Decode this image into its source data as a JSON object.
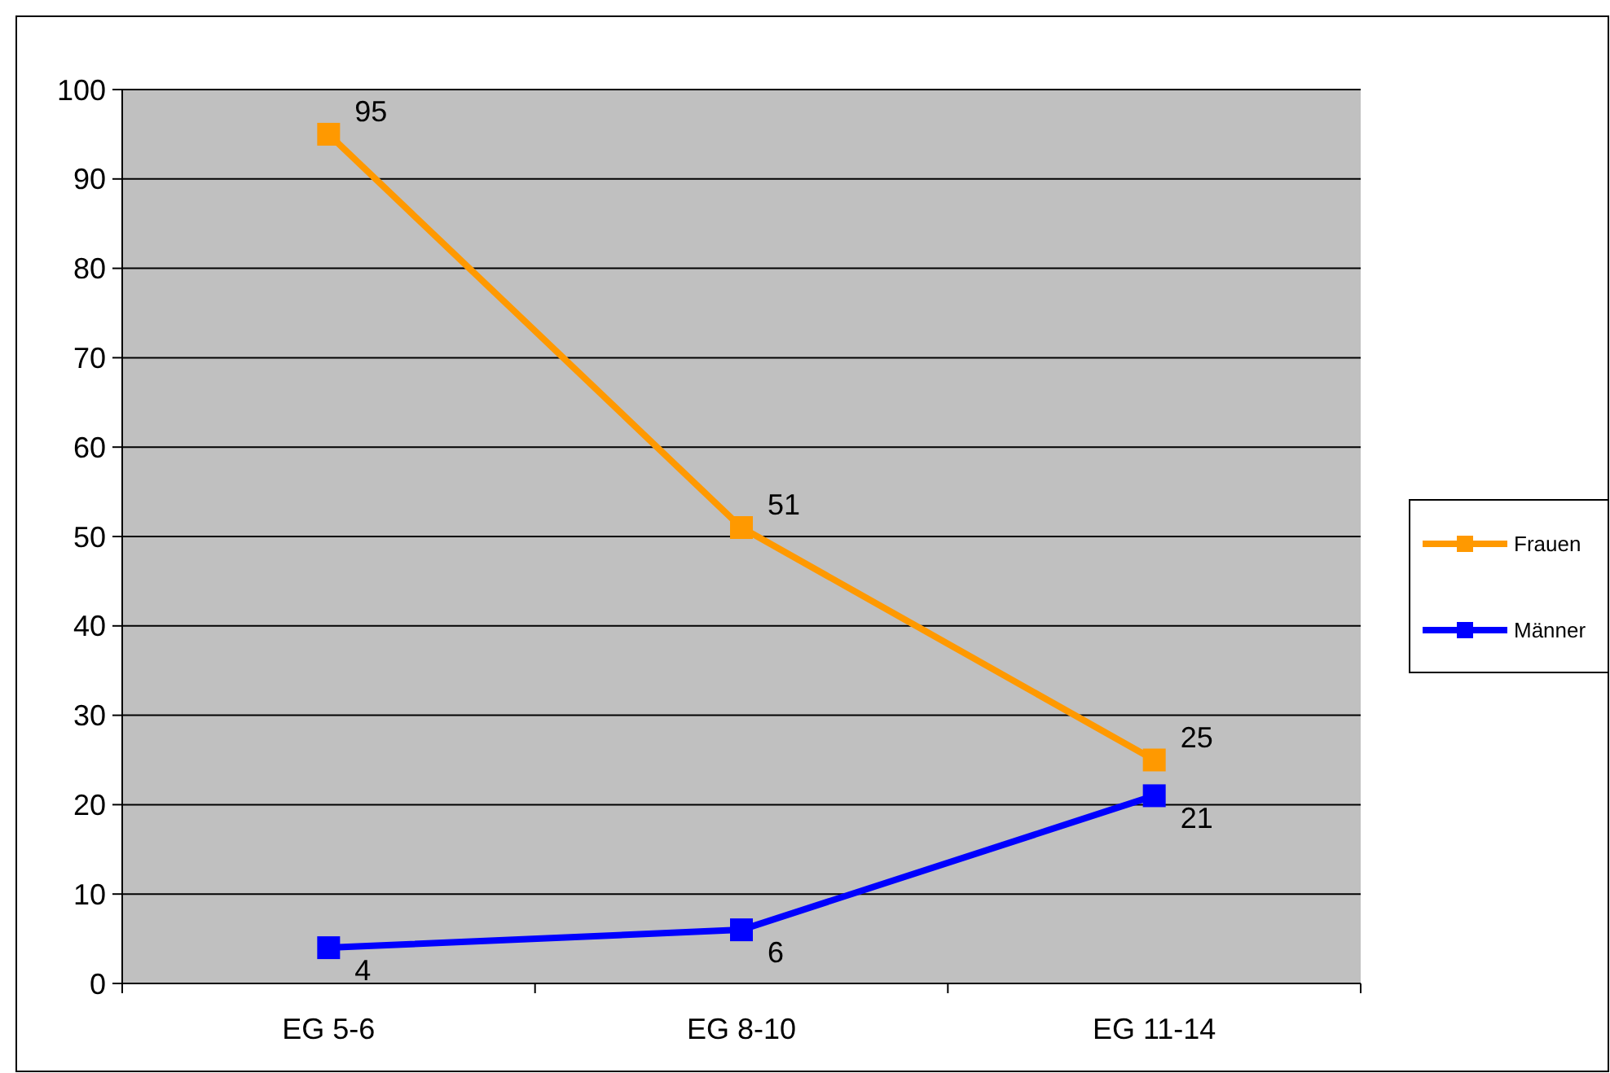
{
  "chart_data": {
    "type": "line",
    "categories": [
      "EG 5-6",
      "EG 8-10",
      "EG 11-14"
    ],
    "series": [
      {
        "name": "Frauen",
        "color": "#ff9900",
        "values": [
          95,
          51,
          25
        ]
      },
      {
        "name": "Männer",
        "color": "#0000ff",
        "values": [
          4,
          6,
          21
        ]
      }
    ],
    "ylim": [
      0,
      100
    ],
    "yticks": [
      0,
      10,
      20,
      30,
      40,
      50,
      60,
      70,
      80,
      90,
      100
    ],
    "grid": "y",
    "legend": "right",
    "marker": "square",
    "data_labels": true
  }
}
